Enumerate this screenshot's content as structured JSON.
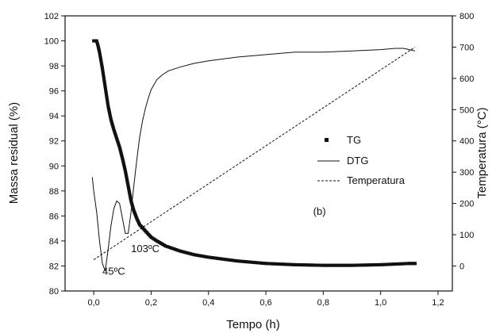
{
  "chart_data": {
    "type": "line",
    "xlabel": "Tempo (h)",
    "ylabel_left": "Massa residual (%)",
    "ylabel_right": "Temperatura (°C)",
    "xlim": [
      -0.1,
      1.25
    ],
    "ylim_left": [
      80,
      102
    ],
    "ylim_right": [
      -80,
      800
    ],
    "x_ticks": [
      "0,0",
      "0,2",
      "0,4",
      "0,6",
      "0,8",
      "1,0",
      "1,2"
    ],
    "y_left_ticks": [
      "80",
      "82",
      "84",
      "86",
      "88",
      "90",
      "92",
      "94",
      "96",
      "98",
      "100",
      "102"
    ],
    "y_right_ticks": [
      "0",
      "100",
      "200",
      "300",
      "400",
      "500",
      "600",
      "700",
      "800"
    ],
    "grid": false,
    "legend_position": "center-right",
    "series": [
      {
        "name": "TG",
        "style": "square-markers",
        "axis": "left",
        "x": [
          0.0,
          0.01,
          0.015,
          0.02,
          0.03,
          0.04,
          0.05,
          0.06,
          0.07,
          0.08,
          0.09,
          0.1,
          0.11,
          0.12,
          0.13,
          0.14,
          0.15,
          0.16,
          0.18,
          0.2,
          0.22,
          0.25,
          0.3,
          0.35,
          0.4,
          0.5,
          0.6,
          0.7,
          0.8,
          0.9,
          1.0,
          1.05,
          1.1,
          1.12
        ],
        "y": [
          100.0,
          100.0,
          99.6,
          99.1,
          97.8,
          96.3,
          94.8,
          93.7,
          92.9,
          92.2,
          91.5,
          90.6,
          89.6,
          88.4,
          87.2,
          86.4,
          85.8,
          85.3,
          84.8,
          84.3,
          84.0,
          83.6,
          83.2,
          82.9,
          82.7,
          82.4,
          82.2,
          82.1,
          82.05,
          82.05,
          82.1,
          82.15,
          82.2,
          82.2
        ]
      },
      {
        "name": "DTG",
        "style": "solid",
        "axis": "left",
        "x": [
          -0.005,
          0.0,
          0.01,
          0.02,
          0.03,
          0.04,
          0.05,
          0.06,
          0.07,
          0.08,
          0.09,
          0.1,
          0.11,
          0.12,
          0.13,
          0.14,
          0.15,
          0.16,
          0.17,
          0.18,
          0.19,
          0.2,
          0.22,
          0.24,
          0.26,
          0.3,
          0.35,
          0.4,
          0.5,
          0.6,
          0.7,
          0.8,
          0.9,
          1.0,
          1.05,
          1.08,
          1.1,
          1.12
        ],
        "y": [
          89.1,
          88.0,
          86.3,
          84.0,
          82.2,
          81.6,
          83.3,
          85.2,
          86.6,
          87.2,
          87.0,
          85.8,
          84.6,
          84.6,
          86.3,
          88.5,
          90.5,
          92.3,
          93.6,
          94.6,
          95.4,
          96.1,
          96.9,
          97.3,
          97.6,
          97.9,
          98.2,
          98.4,
          98.7,
          98.9,
          99.1,
          99.1,
          99.2,
          99.3,
          99.4,
          99.4,
          99.3,
          99.2
        ]
      },
      {
        "name": "Temperatura",
        "style": "dashed",
        "axis": "right",
        "x": [
          0.0,
          1.12
        ],
        "y": [
          20,
          700
        ]
      }
    ],
    "legend": [
      "TG",
      "DTG",
      "Temperatura"
    ],
    "annotations": [
      {
        "text": "45ºC",
        "x": 0.03,
        "y": 81.3
      },
      {
        "text": "103ºC",
        "x": 0.13,
        "y": 83.1
      },
      {
        "text": "(b)",
        "x": 0.765,
        "y": 86.1
      }
    ]
  }
}
